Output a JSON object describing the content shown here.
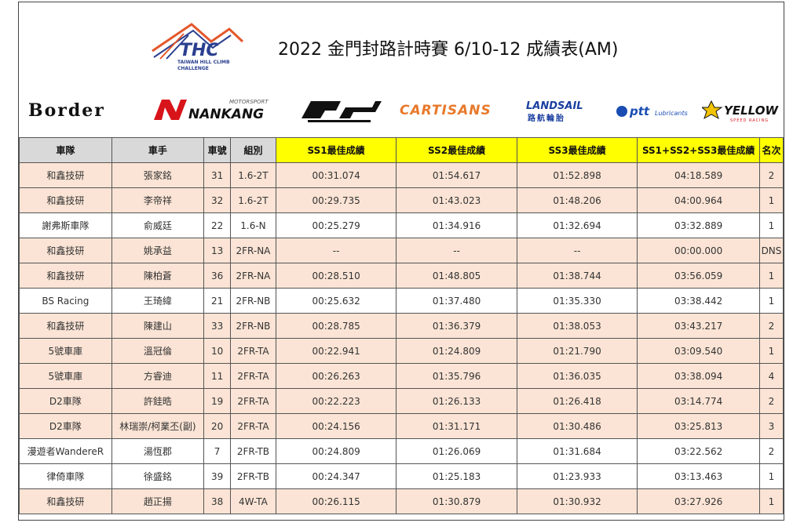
{
  "header": {
    "title": "2022 金門封路計時賽 6/10-12 成績表(AM)",
    "logo": {
      "text": "THC",
      "sub1": "TAIWAN HILL CLIMB",
      "sub2": "CHALLENGE"
    }
  },
  "sponsors": {
    "border": "Border",
    "nankang_small": "MOTORSPORT",
    "nankang": "NANKANG",
    "d2": "D2",
    "cartisans": "CARTISANS",
    "landsail": "LANDSAIL",
    "landsail_sub": "路航輪胎",
    "ptt": "ptt",
    "ptt_sub": "Lubricants",
    "yellow": "YELLOW",
    "yellow_sub": "SPEED RACING"
  },
  "table": {
    "headers": [
      "車隊",
      "車手",
      "車號",
      "組別",
      "SS1最佳成績",
      "SS2最佳成績",
      "SS3最佳成績",
      "SS1+SS2+SS3最佳成績",
      "名次"
    ],
    "rows": [
      [
        "和鑫技研",
        "張家銘",
        "31",
        "1.6-2T",
        "00:31.074",
        "01:54.617",
        "01:52.898",
        "04:18.589",
        "2"
      ],
      [
        "和鑫技研",
        "李帝祥",
        "32",
        "1.6-2T",
        "00:29.735",
        "01:43.023",
        "01:48.206",
        "04:00.964",
        "1"
      ],
      [
        "謝弗斯車隊",
        "俞威廷",
        "22",
        "1.6-N",
        "00:25.279",
        "01:34.916",
        "01:32.694",
        "03:32.889",
        "1"
      ],
      [
        "和鑫技研",
        "姚承益",
        "13",
        "2FR-NA",
        "--",
        "--",
        "--",
        "00:00.000",
        "DNS"
      ],
      [
        "和鑫技研",
        "陳柏蒼",
        "36",
        "2FR-NA",
        "00:28.510",
        "01:48.805",
        "01:38.744",
        "03:56.059",
        "1"
      ],
      [
        "BS Racing",
        "王琦緯",
        "21",
        "2FR-NB",
        "00:25.632",
        "01:37.480",
        "01:35.330",
        "03:38.442",
        "1"
      ],
      [
        "和鑫技研",
        "陳建山",
        "33",
        "2FR-NB",
        "00:28.785",
        "01:36.379",
        "01:38.053",
        "03:43.217",
        "2"
      ],
      [
        "5號車庫",
        "溫冠倫",
        "10",
        "2FR-TA",
        "00:22.941",
        "01:24.809",
        "01:21.790",
        "03:09.540",
        "1"
      ],
      [
        "5號車庫",
        "方睿迪",
        "11",
        "2FR-TA",
        "00:26.263",
        "01:35.796",
        "01:36.035",
        "03:38.094",
        "4"
      ],
      [
        "D2車隊",
        "許銈晧",
        "19",
        "2FR-TA",
        "00:22.223",
        "01:26.133",
        "01:26.418",
        "03:14.774",
        "2"
      ],
      [
        "D2車隊",
        "林瑞崇/柯業丕(副)",
        "20",
        "2FR-TA",
        "00:24.156",
        "01:31.171",
        "01:30.486",
        "03:25.813",
        "3"
      ],
      [
        "漫遊者WandereR",
        "湯恆郡",
        "7",
        "2FR-TB",
        "00:24.809",
        "01:26.069",
        "01:31.684",
        "03:22.562",
        "2"
      ],
      [
        "律倚車隊",
        "徐盛銘",
        "39",
        "2FR-TB",
        "00:24.347",
        "01:25.183",
        "01:23.933",
        "03:13.463",
        "1"
      ],
      [
        "和鑫技研",
        "趙正揚",
        "38",
        "4W-TA",
        "00:26.115",
        "01:30.879",
        "01:30.932",
        "03:27.926",
        "1"
      ]
    ],
    "row_styles": [
      "pink",
      "pink",
      "white",
      "pink",
      "pink",
      "white",
      "pink",
      "pink",
      "pink",
      "pink",
      "pink",
      "white",
      "white",
      "pink"
    ]
  },
  "colors": {
    "row_pink": "#fbe4d5",
    "header_gray": "#d9d9d9",
    "header_yellow": "#ffff00",
    "nankang_red": "#d7141a",
    "cartisans_orange": "#e8792b",
    "landsail_blue": "#1a3fa0",
    "ptt_blue": "#1a4db3",
    "yellow_gold": "#f2c300"
  }
}
